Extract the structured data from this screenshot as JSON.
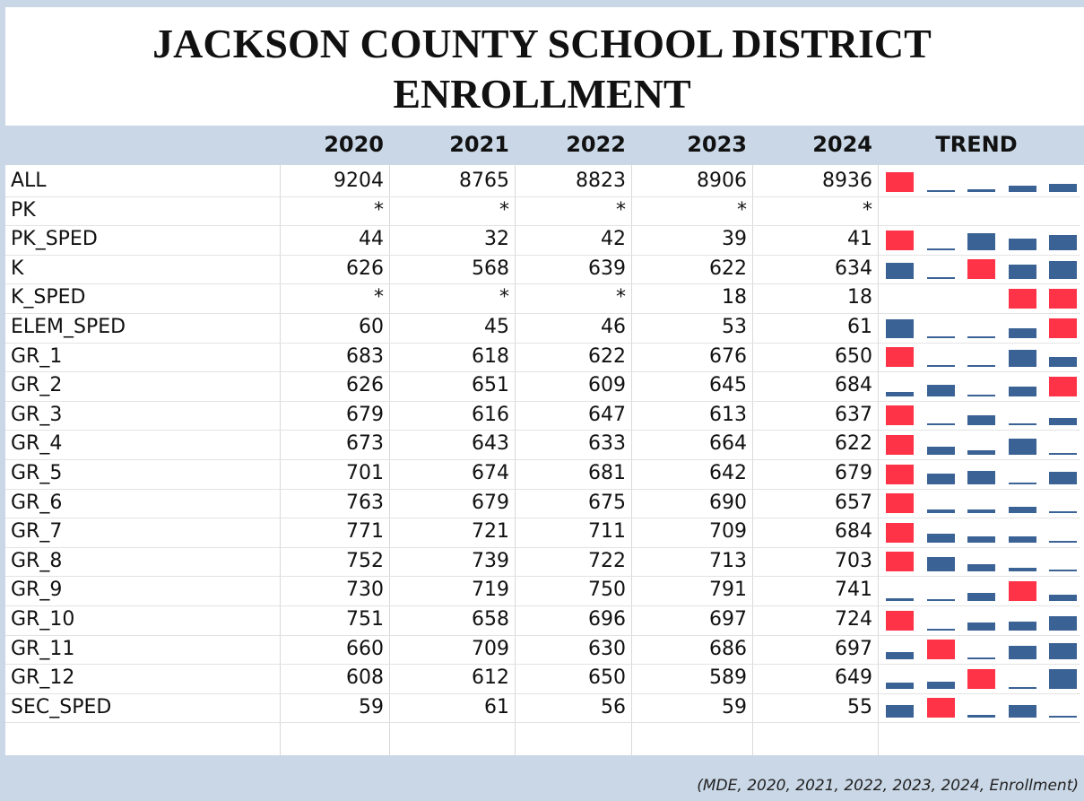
{
  "title": [
    "JACKSON COUNTY SCHOOL DISTRICT",
    "ENROLLMENT"
  ],
  "columns": [
    "2020",
    "2021",
    "2022",
    "2023",
    "2024",
    "TREND"
  ],
  "trend_colors": {
    "max": "#ff3347",
    "other": "#3b6295"
  },
  "rows": [
    {
      "label": "ALL",
      "values": [
        9204,
        8765,
        8823,
        8906,
        8936
      ]
    },
    {
      "label": "PK",
      "values": [
        "*",
        "*",
        "*",
        "*",
        "*"
      ]
    },
    {
      "label": "PK_SPED",
      "values": [
        44,
        32,
        42,
        39,
        41
      ]
    },
    {
      "label": "K",
      "values": [
        626,
        568,
        639,
        622,
        634
      ]
    },
    {
      "label": "K_SPED",
      "values": [
        "*",
        "*",
        "*",
        18,
        18
      ]
    },
    {
      "label": "ELEM_SPED",
      "values": [
        60,
        45,
        46,
        53,
        61
      ]
    },
    {
      "label": "GR_1",
      "values": [
        683,
        618,
        622,
        676,
        650
      ]
    },
    {
      "label": "GR_2",
      "values": [
        626,
        651,
        609,
        645,
        684
      ]
    },
    {
      "label": "GR_3",
      "values": [
        679,
        616,
        647,
        613,
        637
      ]
    },
    {
      "label": "GR_4",
      "values": [
        673,
        643,
        633,
        664,
        622
      ]
    },
    {
      "label": "GR_5",
      "values": [
        701,
        674,
        681,
        642,
        679
      ]
    },
    {
      "label": "GR_6",
      "values": [
        763,
        679,
        675,
        690,
        657
      ]
    },
    {
      "label": "GR_7",
      "values": [
        771,
        721,
        711,
        709,
        684
      ]
    },
    {
      "label": "GR_8",
      "values": [
        752,
        739,
        722,
        713,
        703
      ]
    },
    {
      "label": "GR_9",
      "values": [
        730,
        719,
        750,
        791,
        741
      ]
    },
    {
      "label": "GR_10",
      "values": [
        751,
        658,
        696,
        697,
        724
      ]
    },
    {
      "label": "GR_11",
      "values": [
        660,
        709,
        630,
        686,
        697
      ]
    },
    {
      "label": "GR_12",
      "values": [
        608,
        612,
        650,
        589,
        649
      ]
    },
    {
      "label": "SEC_SPED",
      "values": [
        59,
        61,
        56,
        59,
        55
      ]
    }
  ],
  "source": "(MDE, 2020, 2021, 2022, 2023, 2024, Enrollment)"
}
